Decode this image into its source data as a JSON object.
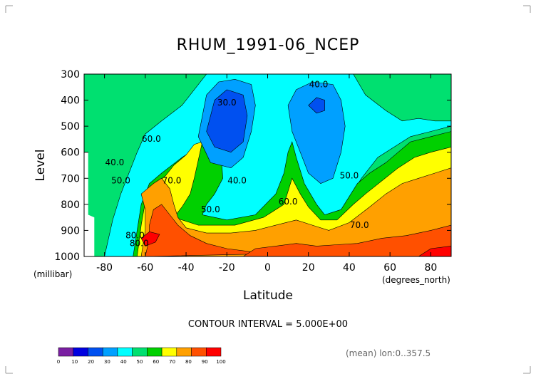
{
  "chart_data": {
    "type": "heatmap",
    "subtype": "filled-contour",
    "title": "RHUM_1991-06_NCEP",
    "xlabel": "Latitude",
    "xunits": "(degrees_north)",
    "ylabel": "Level",
    "yunits": "(millibar)",
    "xlim": [
      -90,
      90
    ],
    "ylim": [
      1000,
      300
    ],
    "xticks": [
      -80,
      -60,
      -40,
      -20,
      0,
      20,
      40,
      60,
      80
    ],
    "yticks": [
      300,
      400,
      500,
      600,
      700,
      800,
      900,
      1000
    ],
    "footer": "CONTOUR INTERVAL = 5.000E+00",
    "mean_label": "(mean) lon:0..357.5",
    "colorbar": {
      "ticks": [
        "0",
        "10",
        "20",
        "30",
        "40",
        "50",
        "60",
        "70",
        "80",
        "90",
        "100"
      ],
      "colors": [
        "#7a1fa2",
        "#0000e0",
        "#0050f0",
        "#00a0ff",
        "#00ffff",
        "#00e070",
        "#00d000",
        "#ffff00",
        "#ffa000",
        "#ff5000",
        "#ff0000"
      ]
    },
    "contour_labels": [
      {
        "text": "30.0",
        "x": -20,
        "y": 420
      },
      {
        "text": "40.0",
        "x": 25,
        "y": 350
      },
      {
        "text": "40.0",
        "x": -75,
        "y": 650
      },
      {
        "text": "50.0",
        "x": -72,
        "y": 720
      },
      {
        "text": "60.0",
        "x": -57,
        "y": 560
      },
      {
        "text": "70.0",
        "x": -47,
        "y": 720
      },
      {
        "text": "40.0",
        "x": -15,
        "y": 720
      },
      {
        "text": "50.0",
        "x": -28,
        "y": 830
      },
      {
        "text": "60.0",
        "x": 10,
        "y": 800
      },
      {
        "text": "50.0",
        "x": 40,
        "y": 700
      },
      {
        "text": "70.0",
        "x": 45,
        "y": 890
      },
      {
        "text": "80.0",
        "x": -65,
        "y": 930
      },
      {
        "text": "80.0",
        "x": -63,
        "y": 960
      }
    ],
    "bands": [
      {
        "level": 15,
        "poly": [
          [
            -90,
            300
          ],
          [
            -68,
            300
          ],
          [
            -72,
            315
          ],
          [
            -78,
            330
          ],
          [
            -86,
            345
          ],
          [
            -90,
            350
          ]
        ]
      },
      {
        "level": 25,
        "poly": [
          [
            -90,
            300
          ],
          [
            -42,
            300
          ],
          [
            -50,
            330
          ],
          [
            -58,
            360
          ],
          [
            -66,
            410
          ],
          [
            -74,
            450
          ],
          [
            -82,
            500
          ],
          [
            -90,
            520
          ]
        ]
      },
      {
        "level": 25,
        "poly": [
          [
            72,
            300
          ],
          [
            90,
            300
          ],
          [
            90,
            370
          ],
          [
            82,
            350
          ],
          [
            76,
            330
          ]
        ]
      },
      {
        "level": 35,
        "poly": [
          [
            -90,
            300
          ],
          [
            -36,
            300
          ],
          [
            -44,
            350
          ],
          [
            -52,
            400
          ],
          [
            -60,
            450
          ],
          [
            -70,
            500
          ],
          [
            -80,
            560
          ],
          [
            -86,
            640
          ],
          [
            -90,
            700
          ]
        ]
      },
      {
        "level": 35,
        "poly": [
          [
            60,
            300
          ],
          [
            90,
            300
          ],
          [
            90,
            410
          ],
          [
            80,
            390
          ],
          [
            70,
            360
          ],
          [
            62,
            330
          ]
        ]
      },
      {
        "level": 45,
        "poly": [
          [
            -90,
            300
          ],
          [
            -30,
            300
          ],
          [
            -40,
            380
          ],
          [
            -50,
            440
          ],
          [
            -60,
            500
          ],
          [
            -68,
            560
          ],
          [
            -74,
            640
          ],
          [
            -80,
            700
          ],
          [
            -84,
            800
          ],
          [
            -86,
            900
          ],
          [
            -88,
            1000
          ],
          [
            -90,
            1000
          ]
        ]
      },
      {
        "level": 45,
        "poly": [
          [
            -8,
            300
          ],
          [
            48,
            300
          ],
          [
            52,
            350
          ],
          [
            56,
            400
          ],
          [
            66,
            430
          ],
          [
            78,
            450
          ],
          [
            90,
            450
          ],
          [
            90,
            300
          ]
        ]
      },
      {
        "level": 55,
        "poly": [
          [
            -90,
            300
          ],
          [
            -30,
            300
          ],
          [
            -42,
            420
          ],
          [
            -52,
            480
          ],
          [
            -60,
            530
          ],
          [
            -64,
            600
          ],
          [
            -68,
            680
          ],
          [
            -72,
            760
          ],
          [
            -76,
            860
          ],
          [
            -80,
            1000
          ],
          [
            -90,
            1000
          ]
        ]
      },
      {
        "level": 55,
        "poly": [
          [
            0,
            300
          ],
          [
            42,
            300
          ],
          [
            48,
            380
          ],
          [
            58,
            440
          ],
          [
            66,
            480
          ],
          [
            74,
            470
          ],
          [
            82,
            480
          ],
          [
            90,
            480
          ],
          [
            90,
            300
          ]
        ]
      },
      {
        "level": 55,
        "poly": [
          [
            38,
            800
          ],
          [
            46,
            700
          ],
          [
            54,
            620
          ],
          [
            62,
            580
          ],
          [
            70,
            540
          ],
          [
            80,
            520
          ],
          [
            90,
            500
          ],
          [
            90,
            1000
          ],
          [
            38,
            1000
          ]
        ]
      },
      {
        "level": 65,
        "poly": [
          [
            -66,
            1000
          ],
          [
            -64,
            900
          ],
          [
            -62,
            800
          ],
          [
            -58,
            720
          ],
          [
            -52,
            680
          ],
          [
            -42,
            620
          ],
          [
            -34,
            580
          ],
          [
            -28,
            520
          ],
          [
            -24,
            470
          ],
          [
            -22,
            700
          ],
          [
            -26,
            760
          ],
          [
            -30,
            800
          ],
          [
            -32,
            840
          ],
          [
            -20,
            860
          ],
          [
            -6,
            840
          ],
          [
            4,
            760
          ],
          [
            8,
            680
          ],
          [
            10,
            600
          ],
          [
            12,
            560
          ],
          [
            14,
            620
          ],
          [
            18,
            720
          ],
          [
            24,
            800
          ],
          [
            28,
            840
          ],
          [
            36,
            820
          ],
          [
            44,
            720
          ],
          [
            50,
            680
          ],
          [
            58,
            640
          ],
          [
            64,
            600
          ],
          [
            70,
            560
          ],
          [
            80,
            540
          ],
          [
            90,
            520
          ],
          [
            90,
            1000
          ]
        ]
      },
      {
        "level": 75,
        "poly": [
          [
            -64,
            1000
          ],
          [
            -62,
            880
          ],
          [
            -60,
            790
          ],
          [
            -56,
            730
          ],
          [
            -50,
            690
          ],
          [
            -46,
            650
          ],
          [
            -40,
            610
          ],
          [
            -36,
            570
          ],
          [
            -32,
            560
          ],
          [
            -36,
            700
          ],
          [
            -38,
            760
          ],
          [
            -42,
            810
          ],
          [
            -46,
            850
          ],
          [
            -34,
            880
          ],
          [
            -16,
            880
          ],
          [
            -2,
            850
          ],
          [
            8,
            800
          ],
          [
            12,
            700
          ],
          [
            16,
            760
          ],
          [
            20,
            810
          ],
          [
            26,
            860
          ],
          [
            34,
            860
          ],
          [
            42,
            800
          ],
          [
            48,
            760
          ],
          [
            56,
            710
          ],
          [
            64,
            660
          ],
          [
            72,
            620
          ],
          [
            80,
            600
          ],
          [
            90,
            580
          ],
          [
            90,
            1000
          ]
        ]
      },
      {
        "level": 85,
        "poly": [
          [
            -62,
            1000
          ],
          [
            -60,
            900
          ],
          [
            -60,
            820
          ],
          [
            -62,
            760
          ],
          [
            -56,
            720
          ],
          [
            -52,
            700
          ],
          [
            -48,
            740
          ],
          [
            -46,
            800
          ],
          [
            -44,
            850
          ],
          [
            -40,
            890
          ],
          [
            -30,
            910
          ],
          [
            -18,
            910
          ],
          [
            -6,
            900
          ],
          [
            4,
            880
          ],
          [
            14,
            860
          ],
          [
            22,
            880
          ],
          [
            30,
            900
          ],
          [
            40,
            870
          ],
          [
            50,
            810
          ],
          [
            58,
            760
          ],
          [
            66,
            720
          ],
          [
            74,
            700
          ],
          [
            82,
            680
          ],
          [
            90,
            660
          ],
          [
            90,
            1000
          ]
        ]
      },
      {
        "level": 95,
        "poly": [
          [
            -60,
            1000
          ],
          [
            -58,
            930
          ],
          [
            -58,
            880
          ],
          [
            -56,
            820
          ],
          [
            -52,
            800
          ],
          [
            -48,
            840
          ],
          [
            -44,
            880
          ],
          [
            -38,
            920
          ],
          [
            -30,
            950
          ],
          [
            -20,
            970
          ],
          [
            -10,
            980
          ],
          [
            0,
            990
          ],
          [
            -60,
            1000
          ]
        ]
      },
      {
        "level": 95,
        "poly": [
          [
            -12,
            1000
          ],
          [
            -6,
            970
          ],
          [
            4,
            960
          ],
          [
            14,
            950
          ],
          [
            24,
            960
          ],
          [
            34,
            955
          ],
          [
            44,
            950
          ],
          [
            56,
            930
          ],
          [
            68,
            920
          ],
          [
            80,
            900
          ],
          [
            90,
            880
          ],
          [
            90,
            1000
          ]
        ]
      },
      {
        "level": 105,
        "poly": [
          [
            -62,
            930
          ],
          [
            -58,
            905
          ],
          [
            -53,
            915
          ],
          [
            -55,
            945
          ],
          [
            -60,
            960
          ]
        ]
      },
      {
        "level": 105,
        "poly": [
          [
            74,
            1000
          ],
          [
            80,
            970
          ],
          [
            90,
            960
          ],
          [
            90,
            1000
          ]
        ]
      },
      {
        "level": 35,
        "poly": [
          [
            -34,
            540
          ],
          [
            -30,
            380
          ],
          [
            -24,
            330
          ],
          [
            -16,
            320
          ],
          [
            -8,
            340
          ],
          [
            -6,
            420
          ],
          [
            -8,
            520
          ],
          [
            -12,
            620
          ],
          [
            -18,
            660
          ],
          [
            -28,
            640
          ]
        ]
      },
      {
        "level": 25,
        "poly": [
          [
            -30,
            520
          ],
          [
            -26,
            400
          ],
          [
            -20,
            360
          ],
          [
            -12,
            380
          ],
          [
            -10,
            460
          ],
          [
            -12,
            560
          ],
          [
            -18,
            600
          ],
          [
            -26,
            580
          ]
        ]
      },
      {
        "level": 35,
        "poly": [
          [
            10,
            420
          ],
          [
            14,
            360
          ],
          [
            22,
            330
          ],
          [
            32,
            340
          ],
          [
            36,
            400
          ],
          [
            38,
            500
          ],
          [
            36,
            600
          ],
          [
            32,
            700
          ],
          [
            26,
            720
          ],
          [
            20,
            680
          ],
          [
            16,
            600
          ],
          [
            12,
            520
          ]
        ]
      },
      {
        "level": 25,
        "poly": [
          [
            20,
            420
          ],
          [
            24,
            390
          ],
          [
            28,
            400
          ],
          [
            28,
            440
          ],
          [
            24,
            450
          ]
        ]
      }
    ],
    "masked": [
      {
        "poly": [
          [
            -90,
            600
          ],
          [
            -88,
            600
          ],
          [
            -88,
            840
          ],
          [
            -85,
            850
          ],
          [
            -85,
            1000
          ],
          [
            -90,
            1000
          ]
        ]
      }
    ]
  }
}
